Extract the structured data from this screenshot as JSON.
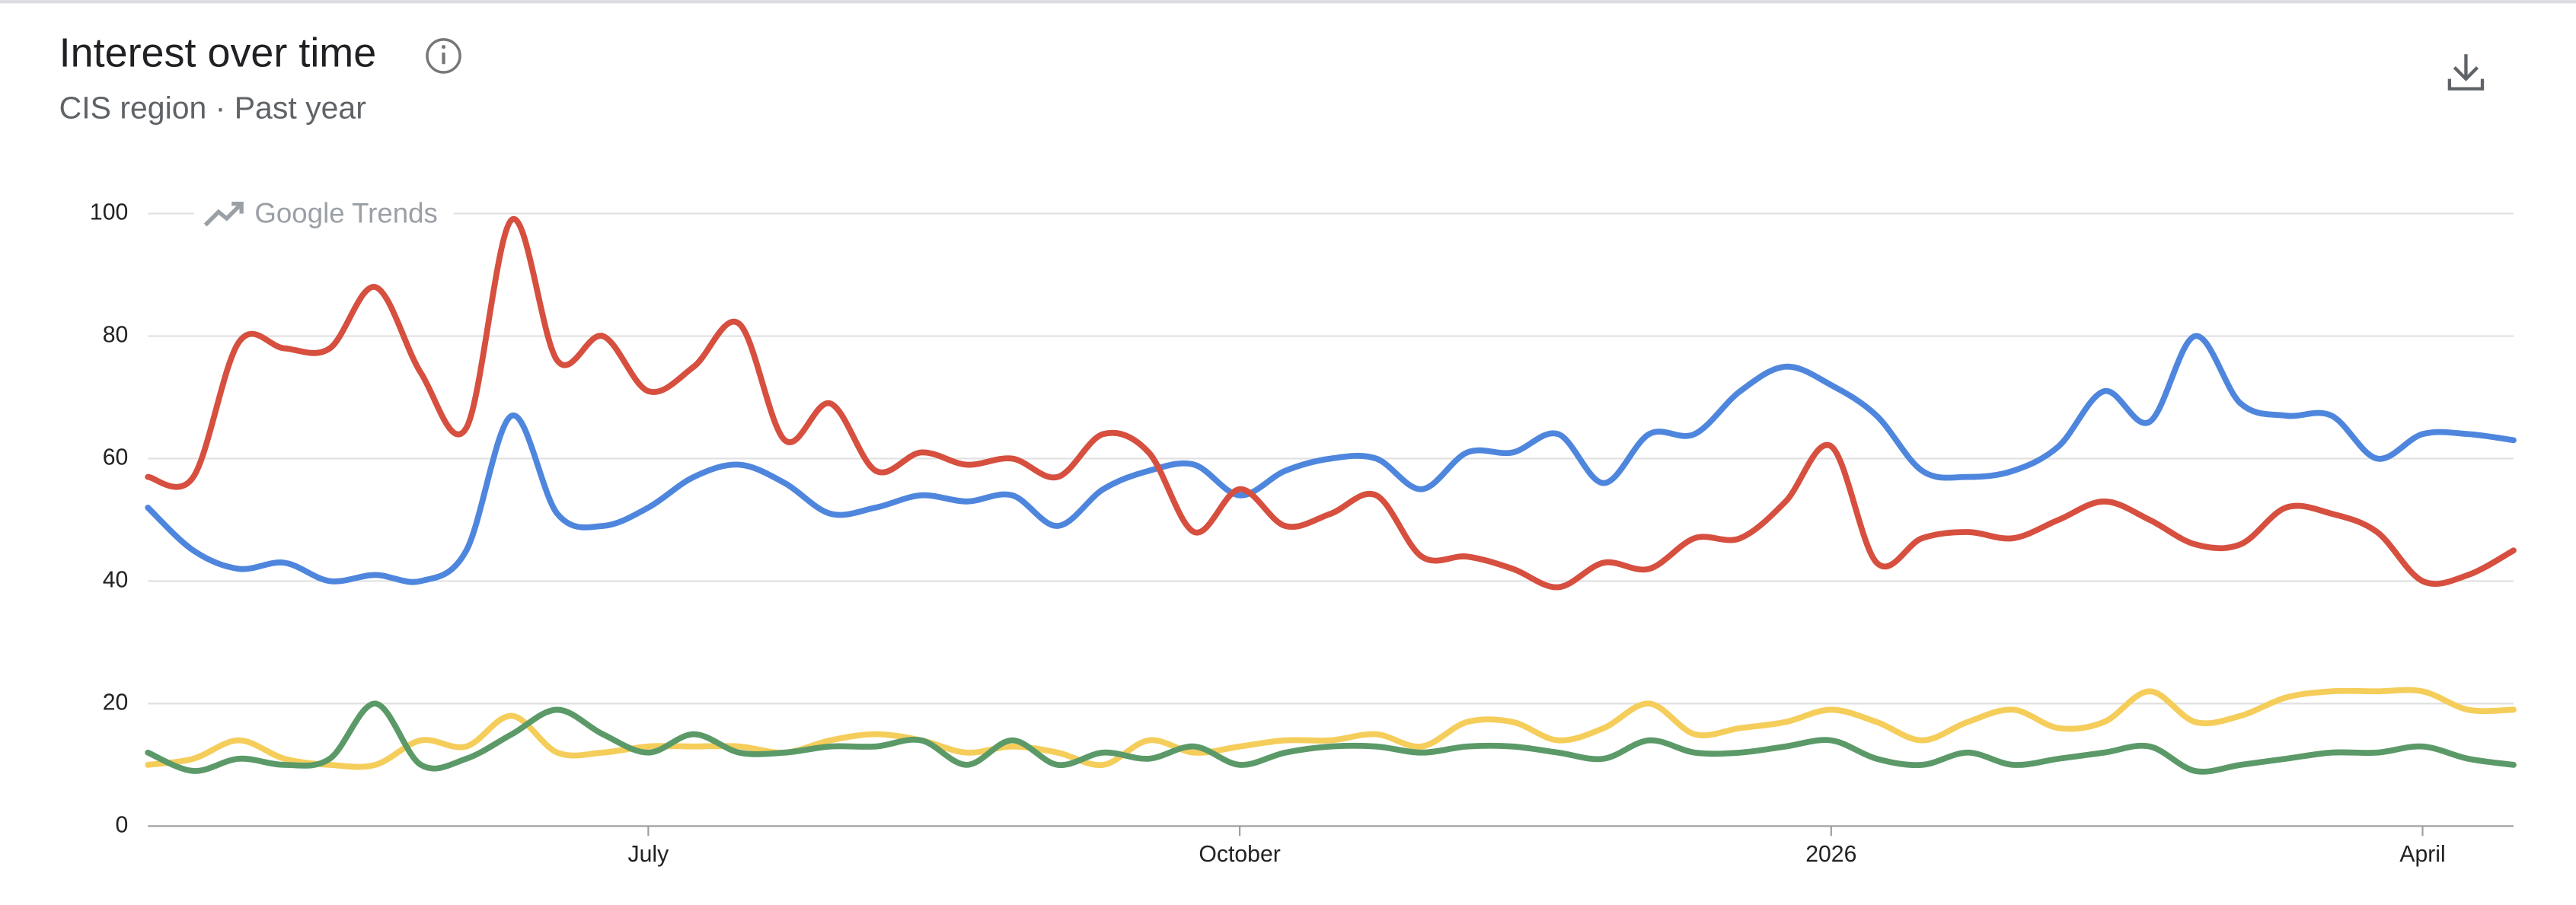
{
  "title": "Interest over time",
  "subtitle": "CIS region · Past year",
  "watermark": "Google Trends",
  "chart_data": {
    "type": "line",
    "categories": [
      null,
      null,
      null,
      null,
      null,
      null,
      null,
      null,
      null,
      null,
      null,
      "July",
      null,
      null,
      null,
      null,
      null,
      null,
      null,
      null,
      null,
      null,
      null,
      null,
      "October",
      null,
      null,
      null,
      null,
      null,
      null,
      null,
      null,
      null,
      null,
      null,
      null,
      "2026",
      null,
      null,
      null,
      null,
      null,
      null,
      null,
      null,
      null,
      null,
      null,
      null,
      "April",
      null,
      null
    ],
    "series": [
      {
        "color": "#4f86dd",
        "values": [
          52,
          45,
          42,
          43,
          40,
          41,
          40,
          45,
          67,
          51,
          49,
          52,
          57,
          59,
          56,
          51,
          52,
          54,
          53,
          54,
          49,
          55,
          58,
          59,
          54,
          58,
          60,
          60,
          55,
          61,
          61,
          64,
          56,
          64,
          64,
          71,
          75,
          72,
          67,
          58,
          57,
          58,
          62,
          71,
          66,
          80,
          69,
          67,
          67,
          60,
          64,
          64,
          63
        ]
      },
      {
        "color": "#d64f3f",
        "values": [
          57,
          57,
          79,
          78,
          78,
          88,
          74,
          65,
          99,
          76,
          80,
          71,
          75,
          82,
          63,
          69,
          58,
          61,
          59,
          60,
          57,
          64,
          61,
          48,
          55,
          49,
          51,
          54,
          44,
          44,
          42,
          39,
          43,
          42,
          47,
          47,
          53,
          62,
          43,
          47,
          48,
          47,
          50,
          53,
          50,
          46,
          46,
          52,
          51,
          48,
          40,
          41,
          45
        ]
      },
      {
        "color": "#f5cd5a",
        "values": [
          10,
          11,
          14,
          11,
          10,
          10,
          14,
          13,
          18,
          12,
          12,
          13,
          13,
          13,
          12,
          14,
          15,
          14,
          12,
          13,
          12,
          10,
          14,
          12,
          13,
          14,
          14,
          15,
          13,
          17,
          17,
          14,
          16,
          20,
          15,
          16,
          17,
          19,
          17,
          14,
          17,
          19,
          16,
          17,
          22,
          17,
          18,
          21,
          22,
          22,
          22,
          19,
          19
        ]
      },
      {
        "color": "#5b9a68",
        "values": [
          12,
          9,
          11,
          10,
          11,
          20,
          10,
          11,
          15,
          19,
          15,
          12,
          15,
          12,
          12,
          13,
          13,
          14,
          10,
          14,
          10,
          12,
          11,
          13,
          10,
          12,
          13,
          13,
          12,
          13,
          13,
          12,
          11,
          14,
          12,
          12,
          13,
          14,
          11,
          10,
          12,
          10,
          11,
          12,
          13,
          9,
          10,
          11,
          12,
          12,
          13,
          11,
          10
        ]
      }
    ],
    "ylim": [
      0,
      100
    ],
    "yticks": [
      0,
      20,
      40,
      60,
      80,
      100
    ],
    "grid": true
  }
}
